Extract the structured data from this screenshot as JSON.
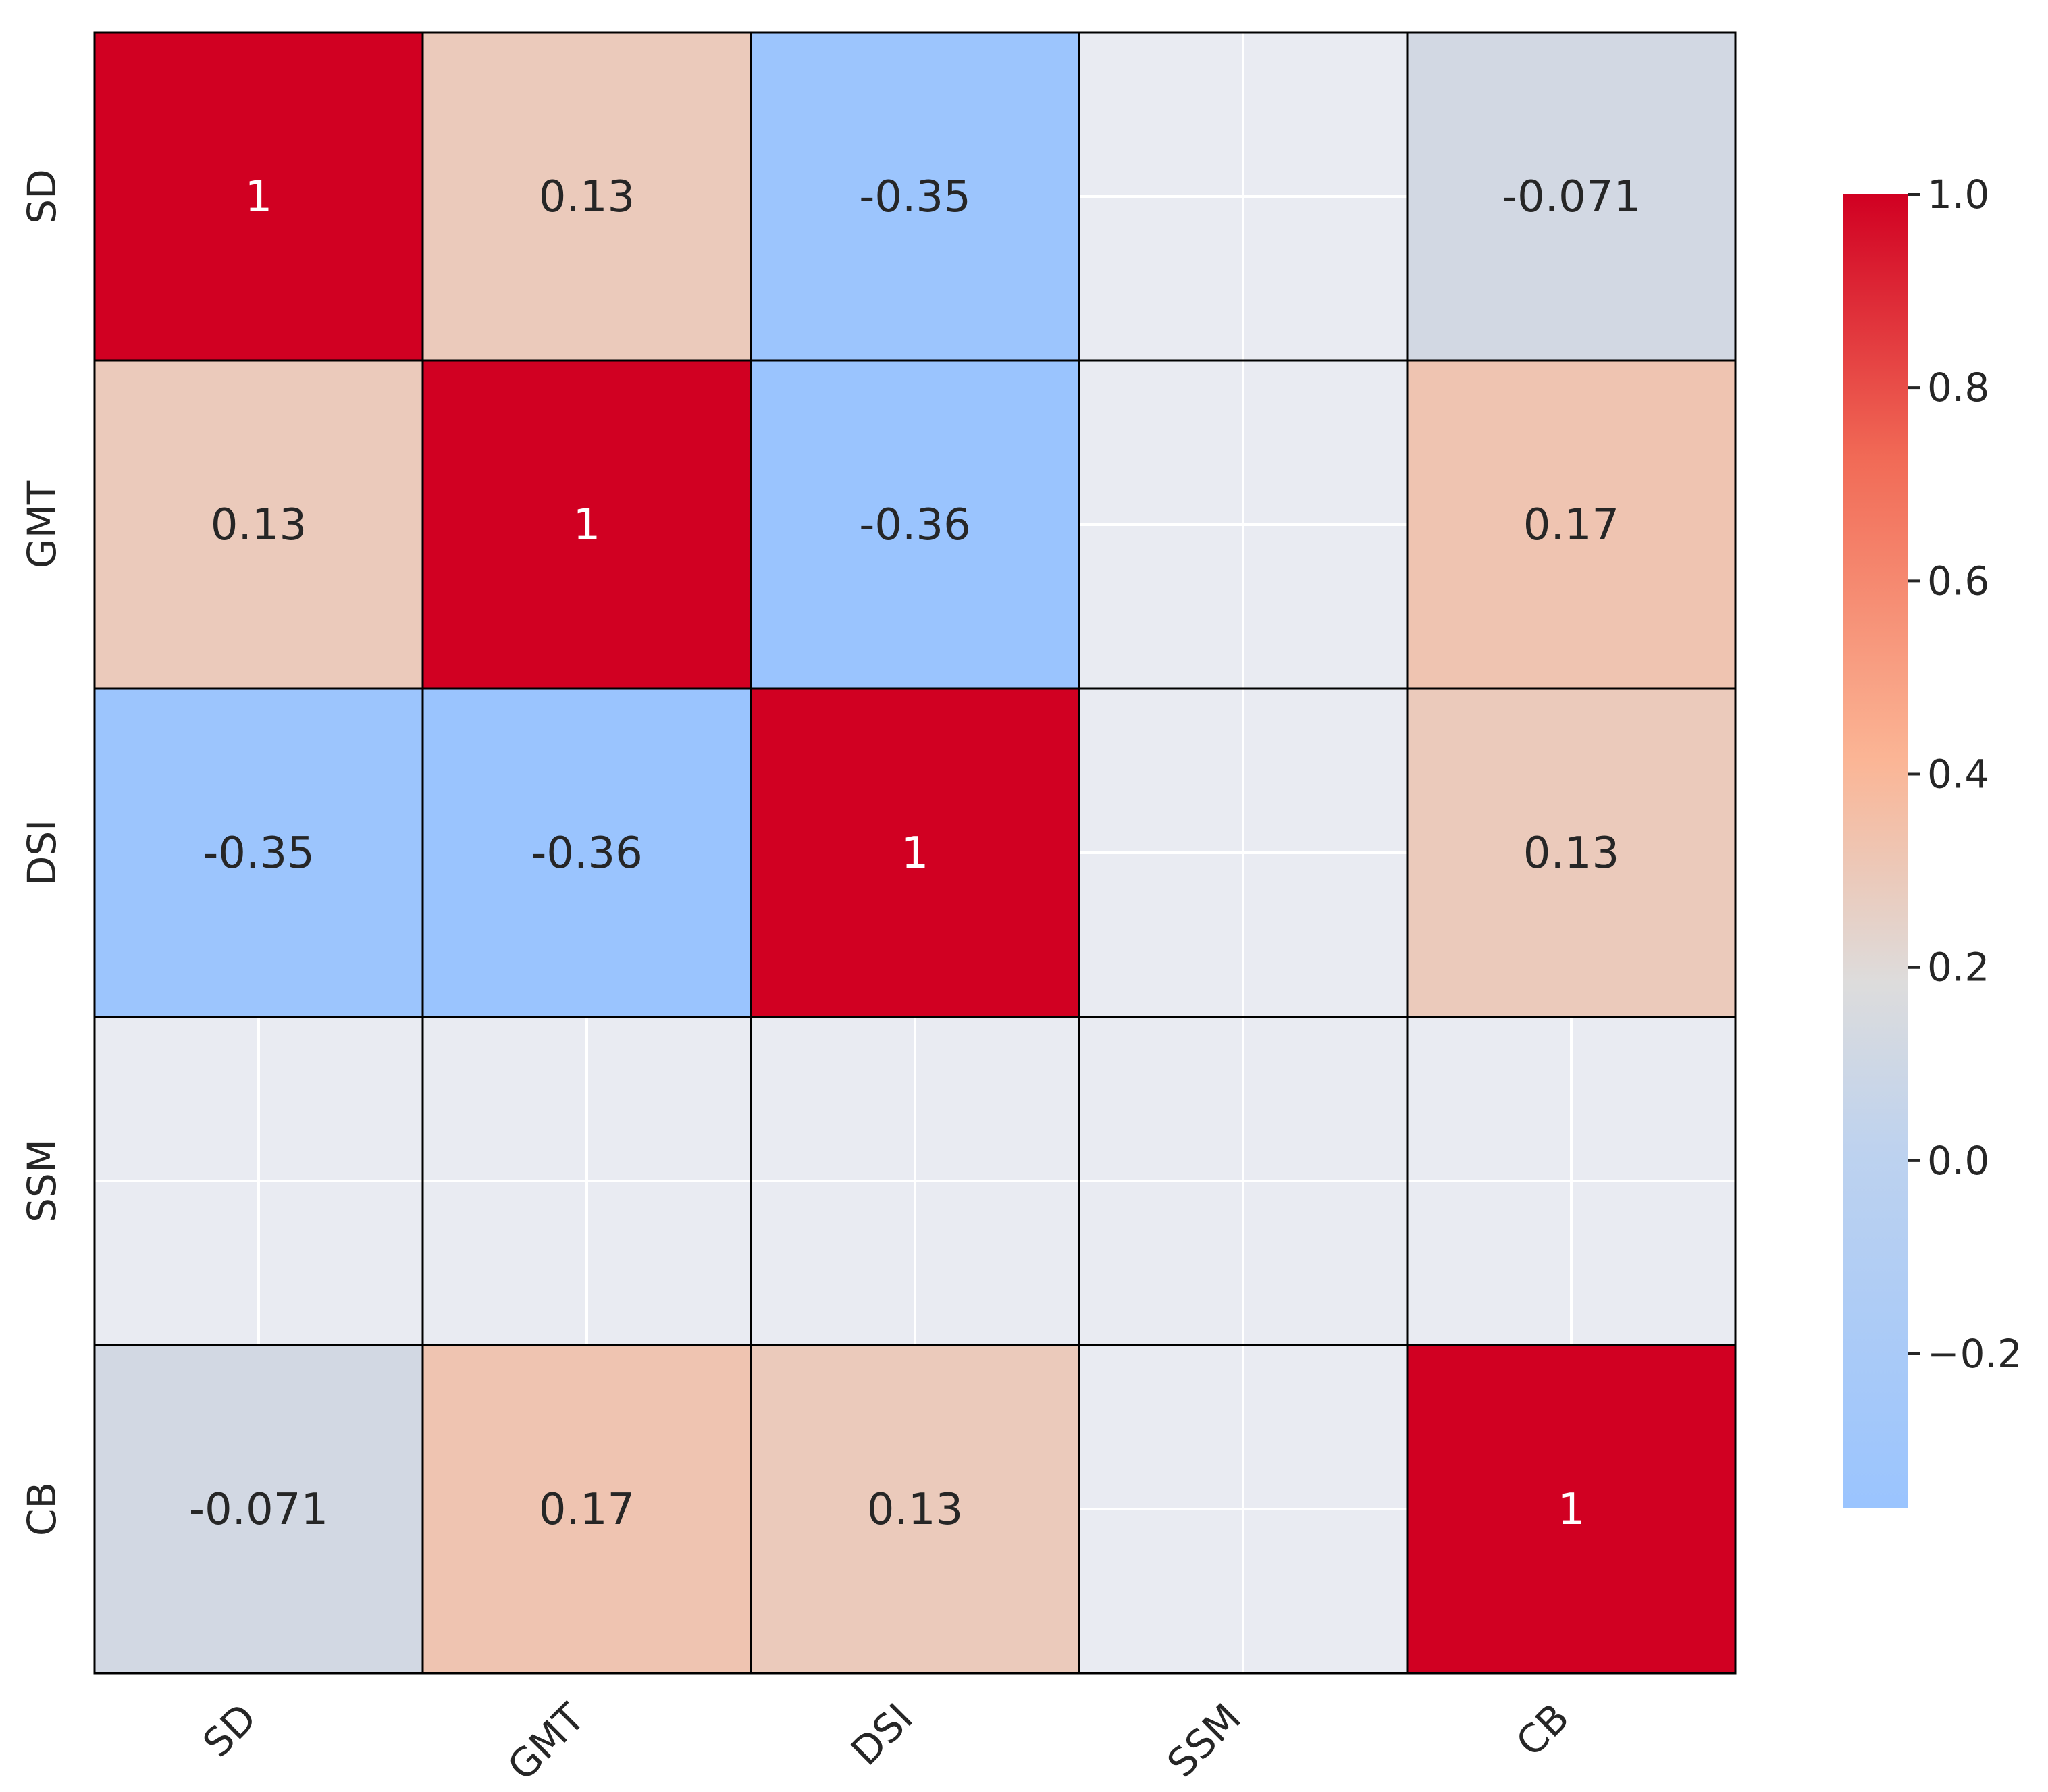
{
  "chart_data": {
    "type": "heatmap",
    "title": "",
    "xlabel": "",
    "ylabel": "",
    "x_categories": [
      "SD",
      "GMT",
      "DSI",
      "SSM",
      "CB"
    ],
    "y_categories": [
      "SD",
      "GMT",
      "DSI",
      "SSM",
      "CB"
    ],
    "values": [
      [
        1,
        0.13,
        -0.35,
        null,
        -0.071
      ],
      [
        0.13,
        1,
        -0.36,
        null,
        0.17
      ],
      [
        -0.35,
        -0.36,
        1,
        null,
        0.13
      ],
      [
        null,
        null,
        null,
        null,
        null
      ],
      [
        -0.071,
        0.17,
        0.13,
        null,
        1
      ]
    ],
    "annotations": [
      [
        "1",
        "0.13",
        "-0.35",
        "",
        "-0.071"
      ],
      [
        "0.13",
        "1",
        "-0.36",
        "",
        "0.17"
      ],
      [
        "-0.35",
        "-0.36",
        "1",
        "",
        "0.13"
      ],
      [
        "",
        "",
        "",
        "",
        ""
      ],
      [
        "-0.071",
        "0.17",
        "0.13",
        "",
        "1"
      ]
    ],
    "colorbar": {
      "vmin": -0.36,
      "vmax": 1.0,
      "ticks": [
        1.0,
        0.8,
        0.6,
        0.4,
        0.2,
        0.0,
        -0.2
      ],
      "tick_labels": [
        "1.0",
        "0.8",
        "0.6",
        "0.4",
        "0.2",
        "0.0",
        "−0.2"
      ],
      "colormap": "coolwarm"
    },
    "colors": {
      "max": "#d10022",
      "warm_high": "#f16a56",
      "warm_mid": "#fbb595",
      "center": "#dddcdc",
      "cool_mid": "#bdd2ef",
      "min": "#9ac4fe",
      "missing_background": "#e9ebf2",
      "grid_line": "#ffffff",
      "cell_border": "#000000",
      "text_dark": "#262626",
      "text_light": "#ffffff"
    }
  }
}
